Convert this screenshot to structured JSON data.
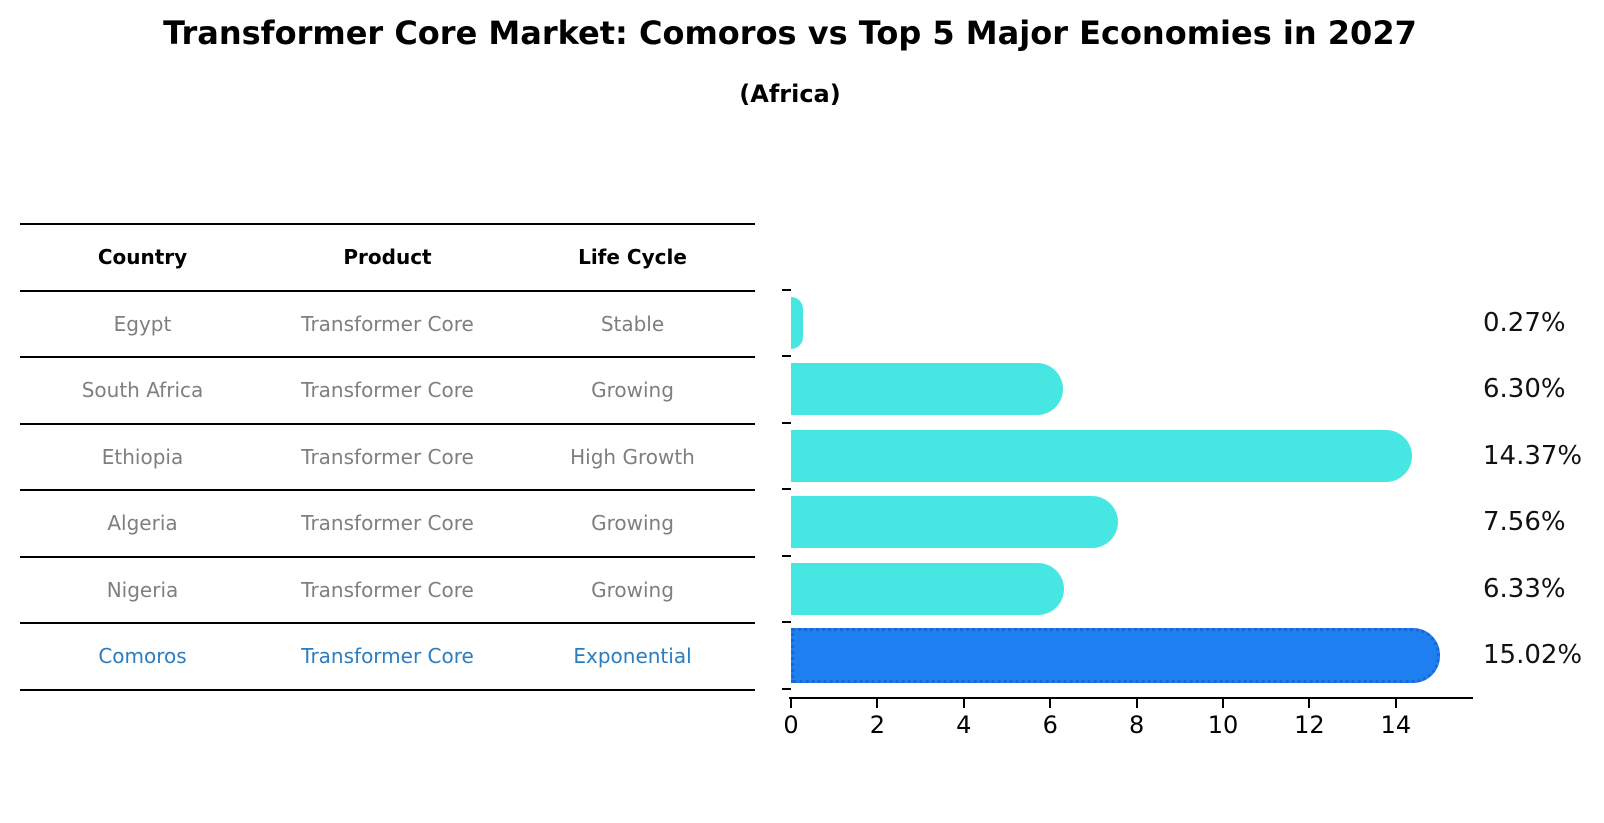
{
  "title": "Transformer Core Market: Comoros vs Top 5 Major Economies in 2027",
  "subtitle": "(Africa)",
  "table": {
    "columns": [
      "Country",
      "Product",
      "Life Cycle"
    ],
    "rows": [
      {
        "country": "Egypt",
        "product": "Transformer Core",
        "life_cycle": "Stable",
        "highlight": false
      },
      {
        "country": "South Africa",
        "product": "Transformer Core",
        "life_cycle": "Growing",
        "highlight": false
      },
      {
        "country": "Ethiopia",
        "product": "Transformer Core",
        "life_cycle": "High Growth",
        "highlight": false
      },
      {
        "country": "Algeria",
        "product": "Transformer Core",
        "life_cycle": "Growing",
        "highlight": false
      },
      {
        "country": "Nigeria",
        "product": "Transformer Core",
        "life_cycle": "Growing",
        "highlight": false
      },
      {
        "country": "Comoros",
        "product": "Transformer Core",
        "life_cycle": "Exponential",
        "highlight": true
      }
    ]
  },
  "chart_data": {
    "type": "bar",
    "orientation": "horizontal",
    "title": "Transformer Core Market: Comoros vs Top 5 Major Economies in 2027 (Africa)",
    "categories": [
      "Egypt",
      "South Africa",
      "Ethiopia",
      "Algeria",
      "Nigeria",
      "Comoros"
    ],
    "values": [
      0.27,
      6.3,
      14.37,
      7.56,
      6.33,
      15.02
    ],
    "labels": [
      "0.27%",
      "6.30%",
      "14.37%",
      "7.56%",
      "6.33%",
      "15.02%"
    ],
    "x_ticks": [
      "0",
      "2",
      "4",
      "6",
      "8",
      "10",
      "12",
      "14"
    ],
    "xlim": [
      0,
      15.74
    ],
    "grid": false,
    "legend": "none",
    "bar_color": "#46e7e3",
    "highlight_color": "#1e80f0",
    "highlight_border_color": "#1a66d9",
    "highlight_index": 5,
    "highlight_text_color": "#2b7dc0"
  }
}
